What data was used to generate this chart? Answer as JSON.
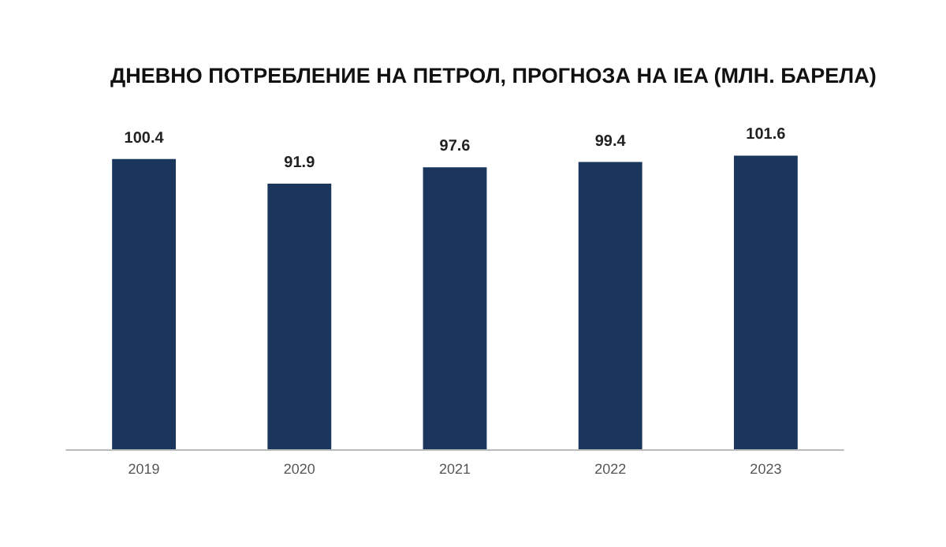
{
  "chart_data": {
    "type": "bar",
    "title": "ДНЕВНО ПОТРЕБЛЕНИЕ НА ПЕТРОЛ, ПРОГНОЗА НА IEA (МЛН. БАРЕЛА)",
    "categories": [
      "2019",
      "2020",
      "2021",
      "2022",
      "2023"
    ],
    "values": [
      100.4,
      91.9,
      97.6,
      99.4,
      101.6
    ],
    "color": "#1b365d",
    "tick_labels": "x",
    "data_labels": true
  }
}
